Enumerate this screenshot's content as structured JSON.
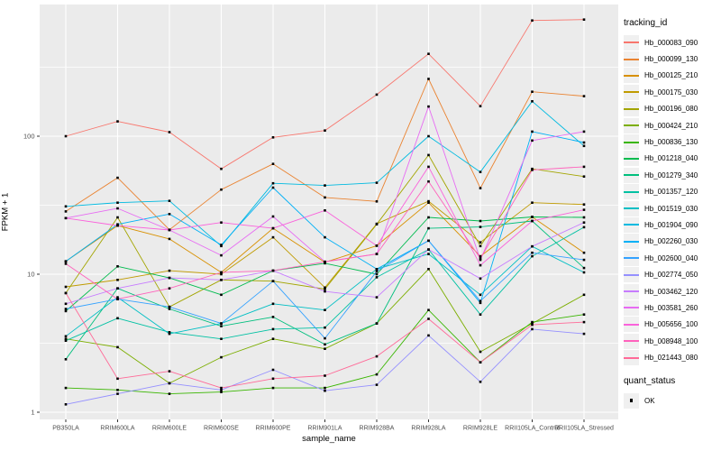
{
  "figure": {
    "bg": "#FFFFFF",
    "panel_bg": "#EBEBEB",
    "grid_color": "#FFFFFF",
    "point_color": "#000000",
    "tick_color": "#333333",
    "tick_label_color": "#4D4D4D",
    "legend_key_bg": "#F0F0F0"
  },
  "axes": {
    "x_label": "sample_name",
    "y_label": "FPKM + 1",
    "y_tick_labels": [
      "100",
      "10",
      "1"
    ],
    "y_tick_values": [
      100,
      10,
      1
    ]
  },
  "legend": {
    "tracking_title": "tracking_id",
    "quant_title": "quant_status",
    "quant_items": [
      {
        "label": "OK"
      }
    ]
  },
  "chart_data": {
    "type": "line",
    "title": "",
    "xlabel": "sample_name",
    "ylabel": "FPKM + 1",
    "yscale": "log10",
    "ylim": [
      0.9,
      900
    ],
    "grid": true,
    "legend_position": "right",
    "legend_titles": {
      "color": "tracking_id",
      "shape": "quant_status"
    },
    "shape_legend_values": [
      "OK"
    ],
    "minor_gridline_values": [
      3.1623,
      31.623,
      316.23
    ],
    "major_gridline_values": [
      1,
      10,
      100
    ],
    "categories": [
      "PB350LA",
      "RRIM600LA",
      "RRIM600LE",
      "RRIM600SE",
      "RRIM600PE",
      "RRIM901LA",
      "RRIM928BA",
      "RRIM928LA",
      "RRIM928LE",
      "RRII105LA_Control",
      "RRII105LA_Stressed"
    ],
    "series": [
      {
        "name": "Hb_000083_090",
        "color": "#F8766D",
        "values": [
          100,
          128,
          107,
          58,
          98,
          110,
          200,
          395,
          165,
          690,
          700
        ]
      },
      {
        "name": "Hb_000099_130",
        "color": "#EA8331",
        "values": [
          28.5,
          50,
          21,
          41,
          63,
          36,
          33.7,
          260,
          42,
          210,
          195
        ]
      },
      {
        "name": "Hb_000125_210",
        "color": "#D89000",
        "values": [
          12.4,
          22.5,
          18,
          10.3,
          21.5,
          12.2,
          16.1,
          33,
          13.5,
          26,
          14.3
        ]
      },
      {
        "name": "Hb_000175_030",
        "color": "#C09B00",
        "values": [
          8.1,
          9.1,
          10.6,
          10.0,
          18.5,
          8.0,
          23.2,
          33.8,
          17,
          33,
          32
        ]
      },
      {
        "name": "Hb_000196_080",
        "color": "#A3A500",
        "values": [
          7.3,
          25.8,
          5.8,
          9.1,
          8.9,
          7.8,
          23.0,
          73,
          16,
          58,
          51
        ]
      },
      {
        "name": "Hb_000424_210",
        "color": "#7CAE00",
        "values": [
          3.4,
          2.96,
          1.62,
          2.5,
          3.4,
          2.88,
          4.4,
          10.9,
          2.74,
          4.4,
          7.1
        ]
      },
      {
        "name": "Hb_000836_130",
        "color": "#39B600",
        "values": [
          1.5,
          1.45,
          1.36,
          1.4,
          1.5,
          1.5,
          1.88,
          5.5,
          2.3,
          4.5,
          5.1
        ]
      },
      {
        "name": "Hb_001218_040",
        "color": "#00BB4E",
        "values": [
          5.4,
          11.4,
          9.4,
          7.1,
          10.6,
          12.0,
          10.0,
          25.8,
          24.3,
          26,
          25.8
        ]
      },
      {
        "name": "Hb_001279_340",
        "color": "#00BF7D",
        "values": [
          2.42,
          7.9,
          5.6,
          4.2,
          4.9,
          3.1,
          4.4,
          21.5,
          22,
          24.3,
          11.1
        ]
      },
      {
        "name": "Hb_001357_120",
        "color": "#00C1A3",
        "values": [
          3.3,
          4.8,
          3.8,
          3.4,
          4.0,
          4.1,
          9.5,
          15.1,
          5.1,
          13.5,
          21.9
        ]
      },
      {
        "name": "Hb_001519_030",
        "color": "#00BFC4",
        "values": [
          3.55,
          6.8,
          3.7,
          4.4,
          6.1,
          5.5,
          10.9,
          14.0,
          7.1,
          15.9,
          10.3
        ]
      },
      {
        "name": "Hb_001904_090",
        "color": "#00BAE0",
        "values": [
          31,
          33,
          34,
          16,
          45.6,
          44,
          46,
          100,
          55,
          179,
          85
        ]
      },
      {
        "name": "Hb_002260_030",
        "color": "#00B0F6",
        "values": [
          12.4,
          23,
          27.3,
          16.3,
          42.4,
          18.5,
          10.9,
          17.5,
          6.2,
          108,
          90
        ]
      },
      {
        "name": "Hb_002600_040",
        "color": "#35A2FF",
        "values": [
          5.6,
          6.6,
          5.8,
          4.4,
          8.9,
          3.43,
          10.5,
          17.5,
          6.4,
          14.3,
          12.7
        ]
      },
      {
        "name": "Hb_002774_050",
        "color": "#9590FF",
        "values": [
          1.14,
          1.36,
          1.62,
          1.45,
          2.03,
          1.43,
          1.58,
          3.6,
          1.66,
          4.0,
          3.7
        ]
      },
      {
        "name": "Hb_003462_120",
        "color": "#C77CFF",
        "values": [
          6.1,
          7.9,
          9.4,
          9.1,
          10.6,
          7.5,
          6.8,
          15.1,
          9.3,
          15.9,
          23.7
        ]
      },
      {
        "name": "Hb_003581_260",
        "color": "#E76BF3",
        "values": [
          25.5,
          30,
          20.9,
          13.7,
          26.2,
          12.3,
          14,
          164,
          12.7,
          93,
          108
        ]
      },
      {
        "name": "Hb_005656_100",
        "color": "#FA62DB",
        "values": [
          25.5,
          22.5,
          20.9,
          23.7,
          21.5,
          29,
          16.1,
          60,
          11.6,
          24.3,
          29.3
        ]
      },
      {
        "name": "Hb_008948_100",
        "color": "#FF62BC",
        "values": [
          11.9,
          6.6,
          7.9,
          10.3,
          10.6,
          12.3,
          14,
          47,
          13,
          57,
          60
        ]
      },
      {
        "name": "Hb_021443_080",
        "color": "#FF6A98",
        "values": [
          7.3,
          1.75,
          1.98,
          1.5,
          1.75,
          1.84,
          2.54,
          4.75,
          2.3,
          4.3,
          4.5
        ]
      }
    ]
  }
}
